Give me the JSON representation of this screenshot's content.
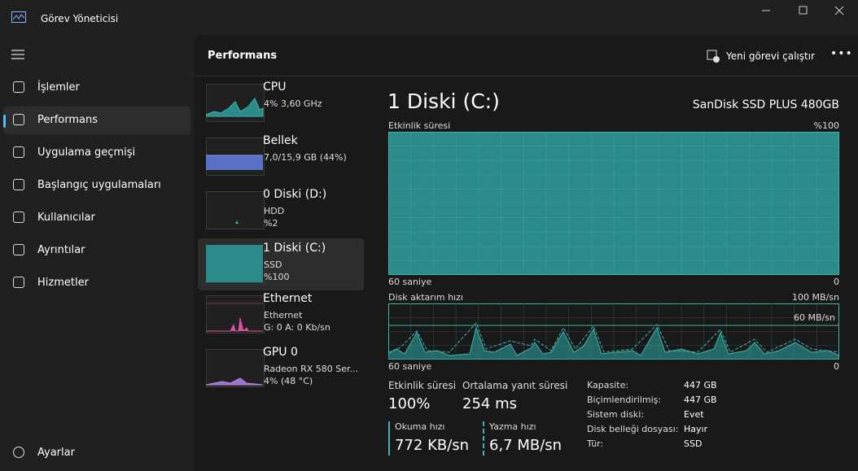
{
  "window": {
    "title": "Görev Yöneticisi"
  },
  "nav": {
    "items": [
      "İşlemler",
      "Performans",
      "Uygulama geçmişi",
      "Başlangıç uygulamaları",
      "Kullanıcılar",
      "Ayrıntılar",
      "Hizmetler"
    ],
    "selected": 1,
    "settings": "Ayarlar"
  },
  "header": {
    "title": "Performans",
    "run_task": "Yeni görevi çalıştır"
  },
  "devices": {
    "selected": 3,
    "items": [
      {
        "name": "CPU",
        "lines": [
          "4% 3,60 GHz"
        ]
      },
      {
        "name": "Bellek",
        "lines": [
          "7,0/15,9 GB (44%)"
        ]
      },
      {
        "name": "0 Diski (D:)",
        "lines": [
          "HDD",
          "%2"
        ]
      },
      {
        "name": "1 Diski (C:)",
        "lines": [
          "SSD",
          "%100"
        ]
      },
      {
        "name": "Ethernet",
        "lines": [
          "Ethernet",
          "G: 0 A: 0 Kb/sn"
        ]
      },
      {
        "name": "GPU 0",
        "lines": [
          "Radeon RX 580 Ser...",
          "4% (48 °C)"
        ]
      }
    ]
  },
  "detail": {
    "title": "1 Diski (C:)",
    "model": "SanDisk SSD PLUS 480GB",
    "activity_chart": {
      "label": "Etkinlik süresi",
      "max": "%100",
      "time": "60 saniye",
      "min": "0"
    },
    "transfer_chart": {
      "label": "Disk aktarım hızı",
      "max": "100 MB/sn",
      "marker": "60 MB/sn",
      "time": "60 saniye",
      "min": "0"
    },
    "stats": {
      "activity": {
        "label": "Etkinlik süresi",
        "value": "100%"
      },
      "response": {
        "label": "Ortalama yanıt süresi",
        "value": "254 ms"
      },
      "read": {
        "label": "Okuma hızı",
        "value": "772 KB/sn"
      },
      "write": {
        "label": "Yazma hızı",
        "value": "6,7 MB/sn"
      }
    },
    "properties": [
      [
        "Kapasite:",
        "447 GB"
      ],
      [
        "Biçimlendirilmiş:",
        "447 GB"
      ],
      [
        "Sistem diski:",
        "Evet"
      ],
      [
        "Disk belleği dosyası:",
        "Hayır"
      ],
      [
        "Tür:",
        "SSD"
      ]
    ]
  }
}
